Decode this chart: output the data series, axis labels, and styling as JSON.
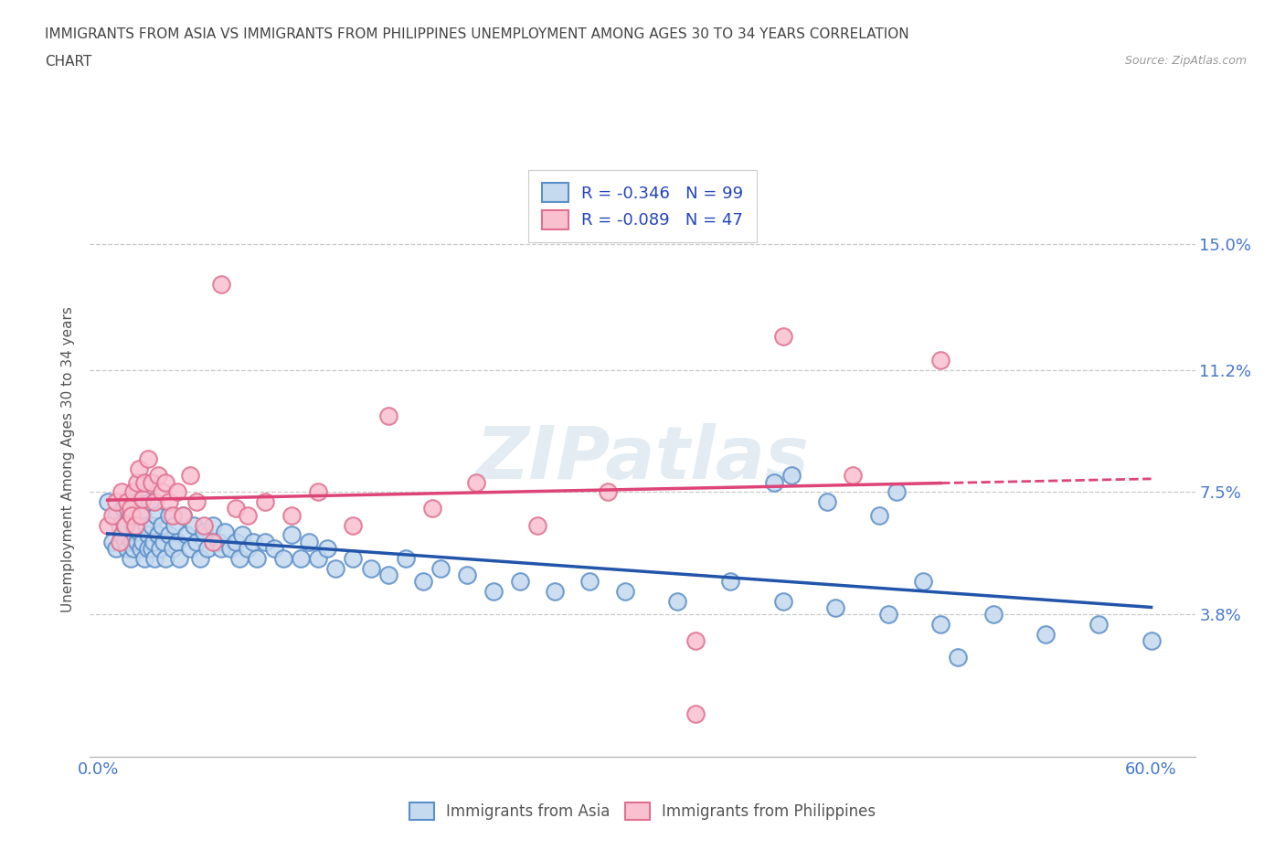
{
  "title_line1": "IMMIGRANTS FROM ASIA VS IMMIGRANTS FROM PHILIPPINES UNEMPLOYMENT AMONG AGES 30 TO 34 YEARS CORRELATION",
  "title_line2": "CHART",
  "source_text": "Source: ZipAtlas.com",
  "ylabel": "Unemployment Among Ages 30 to 34 years",
  "xlim": [
    -0.005,
    0.625
  ],
  "ylim": [
    -0.005,
    0.175
  ],
  "yticks": [
    0.038,
    0.075,
    0.112,
    0.15
  ],
  "ytick_labels": [
    "3.8%",
    "7.5%",
    "11.2%",
    "15.0%"
  ],
  "xticks": [
    0.0,
    0.1,
    0.2,
    0.3,
    0.4,
    0.5,
    0.6
  ],
  "xtick_labels_show": [
    "0.0%",
    "",
    "",
    "",
    "",
    "",
    "60.0%"
  ],
  "asia_R": -0.346,
  "asia_N": 99,
  "phil_R": -0.089,
  "phil_N": 47,
  "asia_color": "#c5d9ef",
  "phil_color": "#f9c0d0",
  "asia_edge_color": "#5b8fc9",
  "phil_edge_color": "#e07090",
  "asia_line_color": "#2255aa",
  "phil_line_color": "#dd4477",
  "legend_R_color": "#2244bb",
  "title_color": "#444444",
  "axis_label_color": "#555555",
  "tick_color": "#4477cc",
  "grid_color": "#c8c8c8",
  "background_color": "#ffffff",
  "asia_x": [
    0.005,
    0.008,
    0.01,
    0.01,
    0.012,
    0.013,
    0.014,
    0.015,
    0.015,
    0.016,
    0.018,
    0.018,
    0.019,
    0.02,
    0.02,
    0.022,
    0.022,
    0.023,
    0.024,
    0.025,
    0.025,
    0.026,
    0.027,
    0.028,
    0.028,
    0.029,
    0.03,
    0.03,
    0.031,
    0.032,
    0.033,
    0.034,
    0.035,
    0.036,
    0.037,
    0.038,
    0.04,
    0.04,
    0.042,
    0.043,
    0.045,
    0.046,
    0.048,
    0.05,
    0.052,
    0.054,
    0.056,
    0.058,
    0.06,
    0.062,
    0.065,
    0.068,
    0.07,
    0.072,
    0.075,
    0.078,
    0.08,
    0.082,
    0.085,
    0.088,
    0.09,
    0.095,
    0.1,
    0.105,
    0.11,
    0.115,
    0.12,
    0.125,
    0.13,
    0.135,
    0.145,
    0.155,
    0.165,
    0.175,
    0.185,
    0.195,
    0.21,
    0.225,
    0.24,
    0.26,
    0.28,
    0.3,
    0.33,
    0.36,
    0.39,
    0.42,
    0.45,
    0.48,
    0.51,
    0.54,
    0.57,
    0.6,
    0.385,
    0.415,
    0.445,
    0.455,
    0.47,
    0.49,
    0.395
  ],
  "asia_y": [
    0.072,
    0.06,
    0.068,
    0.058,
    0.065,
    0.062,
    0.07,
    0.06,
    0.065,
    0.058,
    0.068,
    0.055,
    0.06,
    0.065,
    0.058,
    0.072,
    0.06,
    0.063,
    0.058,
    0.068,
    0.06,
    0.055,
    0.065,
    0.062,
    0.058,
    0.072,
    0.065,
    0.058,
    0.06,
    0.055,
    0.068,
    0.062,
    0.058,
    0.065,
    0.06,
    0.055,
    0.068,
    0.062,
    0.058,
    0.065,
    0.06,
    0.055,
    0.068,
    0.062,
    0.058,
    0.065,
    0.06,
    0.055,
    0.063,
    0.058,
    0.065,
    0.06,
    0.058,
    0.063,
    0.058,
    0.06,
    0.055,
    0.062,
    0.058,
    0.06,
    0.055,
    0.06,
    0.058,
    0.055,
    0.062,
    0.055,
    0.06,
    0.055,
    0.058,
    0.052,
    0.055,
    0.052,
    0.05,
    0.055,
    0.048,
    0.052,
    0.05,
    0.045,
    0.048,
    0.045,
    0.048,
    0.045,
    0.042,
    0.048,
    0.042,
    0.04,
    0.038,
    0.035,
    0.038,
    0.032,
    0.035,
    0.03,
    0.078,
    0.072,
    0.068,
    0.075,
    0.048,
    0.025,
    0.08
  ],
  "phil_x": [
    0.005,
    0.008,
    0.01,
    0.012,
    0.013,
    0.015,
    0.016,
    0.018,
    0.019,
    0.02,
    0.021,
    0.022,
    0.023,
    0.024,
    0.025,
    0.026,
    0.028,
    0.03,
    0.032,
    0.034,
    0.036,
    0.038,
    0.04,
    0.042,
    0.045,
    0.048,
    0.052,
    0.056,
    0.06,
    0.065,
    0.07,
    0.078,
    0.085,
    0.095,
    0.11,
    0.125,
    0.145,
    0.165,
    0.19,
    0.215,
    0.25,
    0.29,
    0.34,
    0.39,
    0.43,
    0.48,
    0.34
  ],
  "phil_y": [
    0.065,
    0.068,
    0.072,
    0.06,
    0.075,
    0.065,
    0.072,
    0.07,
    0.068,
    0.075,
    0.065,
    0.078,
    0.082,
    0.068,
    0.073,
    0.078,
    0.085,
    0.078,
    0.072,
    0.08,
    0.075,
    0.078,
    0.072,
    0.068,
    0.075,
    0.068,
    0.08,
    0.072,
    0.065,
    0.06,
    0.138,
    0.07,
    0.068,
    0.072,
    0.068,
    0.075,
    0.065,
    0.098,
    0.07,
    0.078,
    0.065,
    0.075,
    0.03,
    0.122,
    0.08,
    0.115,
    0.008
  ]
}
